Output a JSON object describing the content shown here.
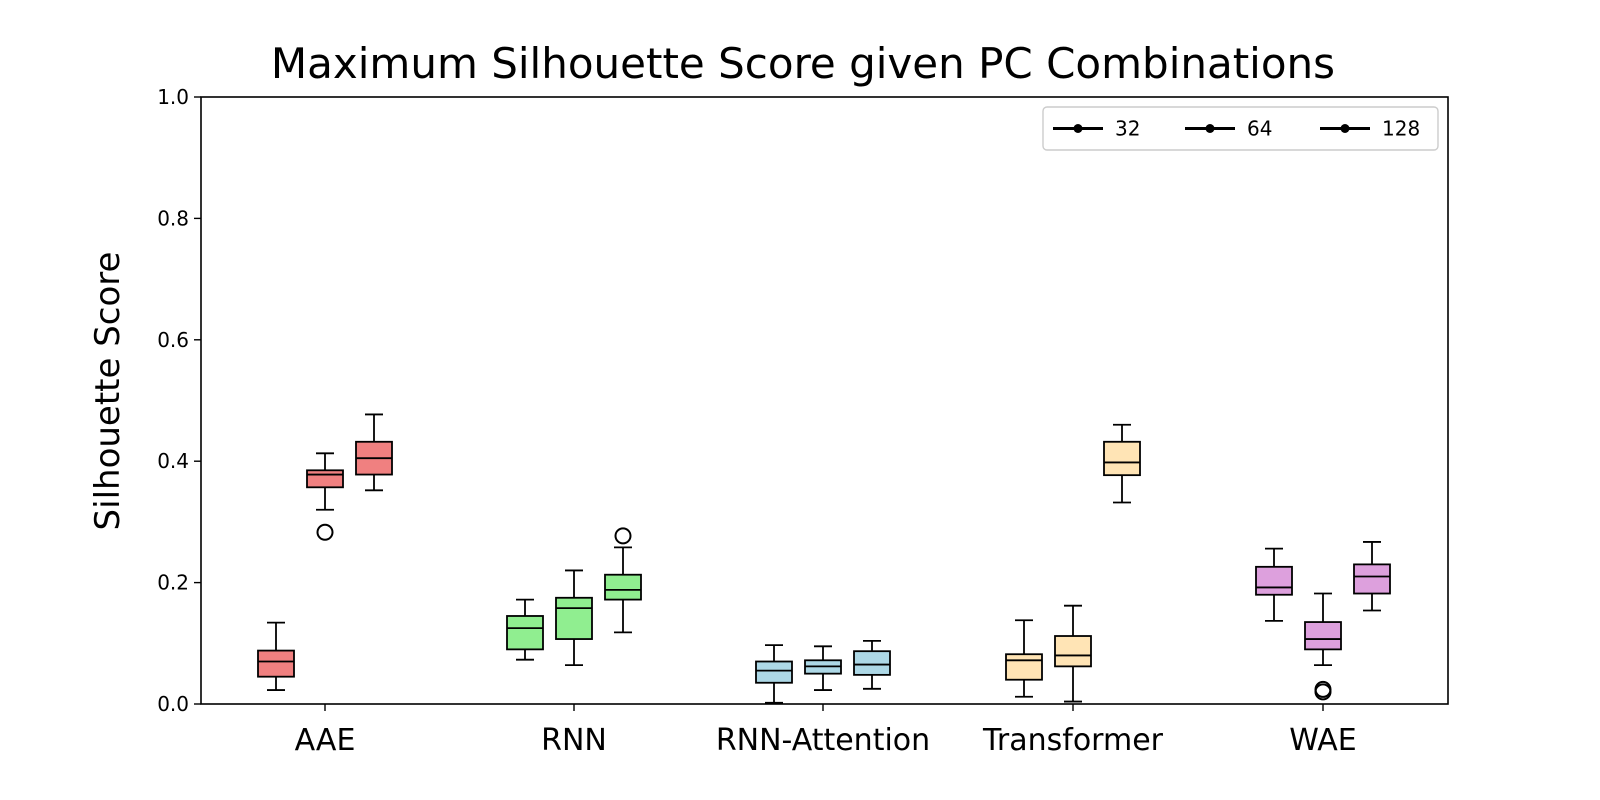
{
  "chart_data": {
    "type": "box",
    "title": "Maximum Silhouette Score given PC Combinations",
    "xlabel": "",
    "ylabel": "Silhouette Score",
    "ylim": [
      0.0,
      1.0
    ],
    "yticks": [
      "0.0",
      "0.2",
      "0.4",
      "0.6",
      "0.8",
      "1.0"
    ],
    "grid": false,
    "legend": {
      "position": "top-right",
      "entries": [
        "32",
        "64",
        "128"
      ]
    },
    "categories": [
      {
        "name": "AAE",
        "color": "#f08080",
        "boxes": [
          {
            "group": "32",
            "whislo": 0.023,
            "q1": 0.045,
            "med": 0.07,
            "q3": 0.088,
            "whishi": 0.134,
            "fliers": []
          },
          {
            "group": "64",
            "whislo": 0.32,
            "q1": 0.357,
            "med": 0.378,
            "q3": 0.385,
            "whishi": 0.413,
            "fliers": [
              0.283
            ]
          },
          {
            "group": "128",
            "whislo": 0.352,
            "q1": 0.378,
            "med": 0.405,
            "q3": 0.432,
            "whishi": 0.477,
            "fliers": []
          }
        ]
      },
      {
        "name": "RNN",
        "color": "#90ee90",
        "boxes": [
          {
            "group": "32",
            "whislo": 0.073,
            "q1": 0.09,
            "med": 0.125,
            "q3": 0.145,
            "whishi": 0.172,
            "fliers": []
          },
          {
            "group": "64",
            "whislo": 0.064,
            "q1": 0.107,
            "med": 0.158,
            "q3": 0.175,
            "whishi": 0.22,
            "fliers": []
          },
          {
            "group": "128",
            "whislo": 0.118,
            "q1": 0.172,
            "med": 0.188,
            "q3": 0.213,
            "whishi": 0.258,
            "fliers": [
              0.277
            ]
          }
        ]
      },
      {
        "name": "RNN-Attention",
        "color": "#add8e6",
        "boxes": [
          {
            "group": "32",
            "whislo": 0.002,
            "q1": 0.035,
            "med": 0.055,
            "q3": 0.07,
            "whishi": 0.097,
            "fliers": []
          },
          {
            "group": "64",
            "whislo": 0.023,
            "q1": 0.05,
            "med": 0.062,
            "q3": 0.072,
            "whishi": 0.095,
            "fliers": []
          },
          {
            "group": "128",
            "whislo": 0.025,
            "q1": 0.048,
            "med": 0.065,
            "q3": 0.087,
            "whishi": 0.104,
            "fliers": []
          }
        ]
      },
      {
        "name": "Transformer",
        "color": "#ffe4b5",
        "boxes": [
          {
            "group": "32",
            "whislo": 0.012,
            "q1": 0.04,
            "med": 0.072,
            "q3": 0.082,
            "whishi": 0.138,
            "fliers": []
          },
          {
            "group": "64",
            "whislo": 0.004,
            "q1": 0.062,
            "med": 0.08,
            "q3": 0.112,
            "whishi": 0.162,
            "fliers": []
          },
          {
            "group": "128",
            "whislo": 0.332,
            "q1": 0.377,
            "med": 0.398,
            "q3": 0.432,
            "whishi": 0.46,
            "fliers": []
          }
        ]
      },
      {
        "name": "WAE",
        "color": "#dda0dd",
        "boxes": [
          {
            "group": "32",
            "whislo": 0.137,
            "q1": 0.18,
            "med": 0.192,
            "q3": 0.226,
            "whishi": 0.256,
            "fliers": []
          },
          {
            "group": "64",
            "whislo": 0.064,
            "q1": 0.09,
            "med": 0.107,
            "q3": 0.135,
            "whishi": 0.182,
            "fliers": [
              0.02,
              0.024
            ]
          },
          {
            "group": "128",
            "whislo": 0.154,
            "q1": 0.182,
            "med": 0.21,
            "q3": 0.23,
            "whishi": 0.267,
            "fliers": []
          }
        ]
      }
    ]
  }
}
